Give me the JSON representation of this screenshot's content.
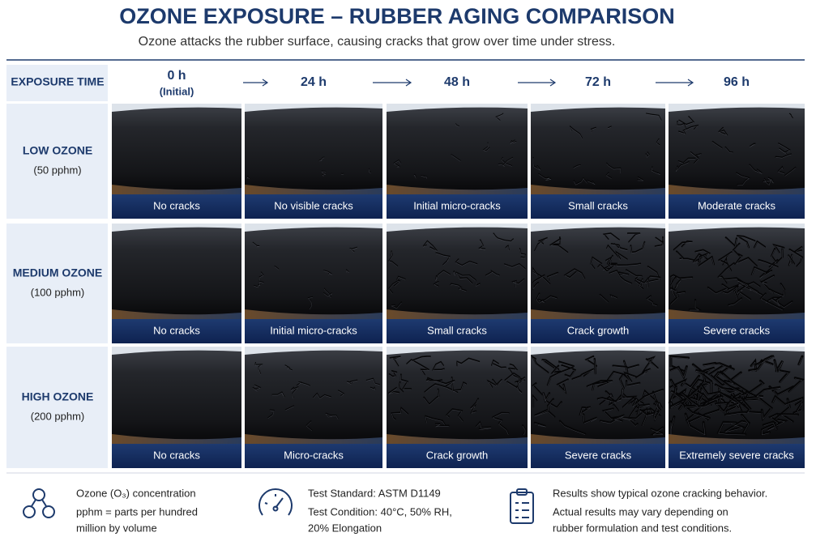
{
  "header": {
    "title": "OZONE EXPOSURE – RUBBER AGING COMPARISON",
    "subtitle": "Ozone attacks the rubber surface, causing cracks that grow over time under stress."
  },
  "table": {
    "corner": "EXPOSURE TIME",
    "columns": [
      {
        "label": "0 h",
        "sublabel": "(Initial)"
      },
      {
        "label": "24 h"
      },
      {
        "label": "48 h"
      },
      {
        "label": "72 h"
      },
      {
        "label": "96 h"
      }
    ],
    "rows": [
      {
        "name": "LOW OZONE",
        "concentration": "(50 pphm)",
        "captions": [
          "No cracks",
          "No visible cracks",
          "Initial micro-cracks",
          "Small cracks",
          "Moderate cracks"
        ]
      },
      {
        "name": "MEDIUM OZONE",
        "concentration": "(100 pphm)",
        "captions": [
          "No cracks",
          "Initial micro-cracks",
          "Small cracks",
          "Crack growth",
          "Severe cracks"
        ]
      },
      {
        "name": "HIGH OZONE",
        "concentration": "(200 pphm)",
        "captions": [
          "No cracks",
          "Micro-cracks",
          "Crack growth",
          "Severe cracks",
          "Extremely severe cracks"
        ]
      }
    ]
  },
  "footer": [
    {
      "lines": [
        "Ozone (O₃) concentration",
        "pphm = parts per hundred",
        "million by volume"
      ]
    },
    {
      "lines": [
        "Test Standard: ASTM D1149",
        "Test Condition: 40°C, 50% RH,",
        "20% Elongation"
      ]
    },
    {
      "lines": [
        "Results show typical ozone cracking behavior.",
        "Actual results may vary depending on",
        "rubber formulation and test conditions."
      ]
    }
  ]
}
